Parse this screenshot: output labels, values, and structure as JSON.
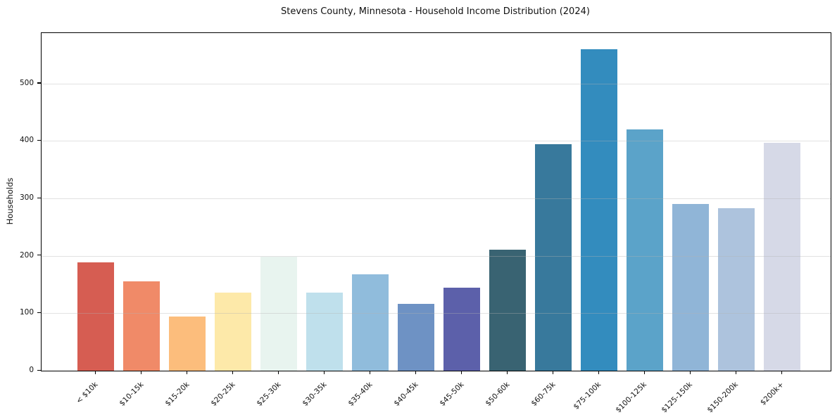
{
  "figure": {
    "background": "#ffffff",
    "frame_color": "#000000",
    "gridline_color": "#e6e6e6"
  },
  "chart_data": {
    "type": "bar",
    "title": "Stevens County, Minnesota - Household Income Distribution (2024)",
    "xlabel": "",
    "ylabel": "Households",
    "categories": [
      "< $10k",
      "$10-15k",
      "$15-20k",
      "$20-25k",
      "$25-30k",
      "$30-35k",
      "$35-40k",
      "$40-45k",
      "$45-50k",
      "$50-60k",
      "$60-75k",
      "$75-100k",
      "$100-125k",
      "$125-150k",
      "$150-200k",
      "$200k+"
    ],
    "values": [
      189,
      155,
      94,
      136,
      198,
      136,
      168,
      116,
      144,
      211,
      394,
      560,
      420,
      290,
      283,
      397
    ],
    "bar_colors": [
      "#d65d52",
      "#f08a68",
      "#fcbd7c",
      "#fde9a9",
      "#e8f4ef",
      "#bfe0ec",
      "#90bcdc",
      "#6e92c4",
      "#5c60aa",
      "#396372",
      "#38799c",
      "#338cbe",
      "#5ba3c9",
      "#90b5d7",
      "#adc3dd",
      "#d6d9e7"
    ],
    "yticks": [
      0,
      100,
      200,
      300,
      400,
      500
    ],
    "ylim": [
      0,
      588
    ],
    "grid": "horizontal",
    "legend": "none",
    "x_tick_rotation": 45
  }
}
